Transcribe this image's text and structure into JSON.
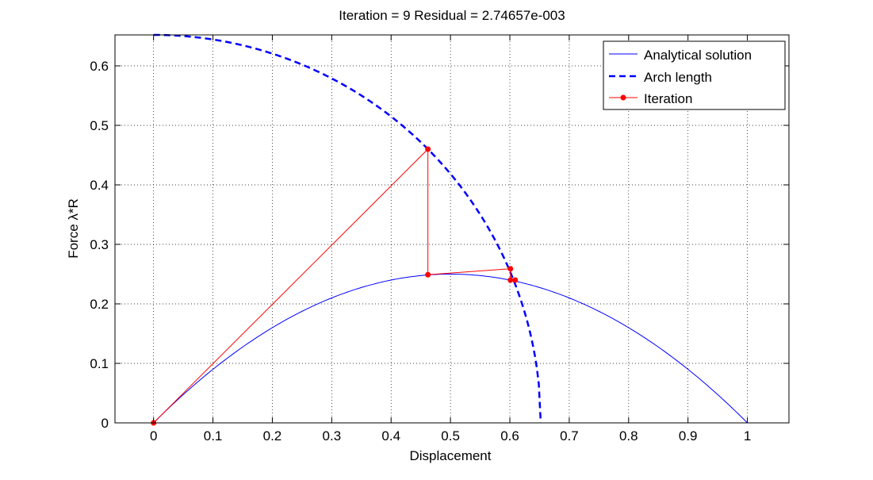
{
  "chart_data": {
    "type": "line",
    "title": "Iteration = 9 Residual = 2.74657e-003",
    "xlabel": "Displacement",
    "ylabel": "Force λ*R",
    "xlim": [
      -0.065,
      1.07
    ],
    "ylim": [
      0,
      0.652
    ],
    "xticks": [
      0,
      0.1,
      0.2,
      0.3,
      0.4,
      0.5,
      0.6,
      0.7,
      0.8,
      0.9,
      1
    ],
    "xtick_labels": [
      "0",
      "0.1",
      "0.2",
      "0.3",
      "0.4",
      "0.5",
      "0.6",
      "0.7",
      "0.8",
      "0.9",
      "1"
    ],
    "yticks": [
      0,
      0.1,
      0.2,
      0.3,
      0.4,
      0.5,
      0.6
    ],
    "ytick_labels": [
      "0",
      "0.1",
      "0.2",
      "0.3",
      "0.4",
      "0.5",
      "0.6"
    ],
    "grid": true,
    "grid_style": "dotted",
    "legend_position": "top-right",
    "legend": [
      "Analytical solution",
      "Arch length",
      "Iteration"
    ],
    "series": [
      {
        "name": "Analytical solution",
        "style": "solid",
        "color": "#0000ff",
        "function": "y = x*(1-x)",
        "x": [
          0,
          0.05,
          0.1,
          0.15,
          0.2,
          0.25,
          0.3,
          0.35,
          0.4,
          0.45,
          0.5,
          0.55,
          0.6,
          0.65,
          0.7,
          0.75,
          0.8,
          0.85,
          0.9,
          0.95,
          1
        ],
        "y": [
          0,
          0.0475,
          0.09,
          0.1275,
          0.16,
          0.1875,
          0.21,
          0.2275,
          0.24,
          0.2475,
          0.25,
          0.2475,
          0.24,
          0.2275,
          0.21,
          0.1875,
          0.16,
          0.1275,
          0.09,
          0.0475,
          0
        ]
      },
      {
        "name": "Arch length",
        "style": "dashed",
        "color": "#0000ff",
        "function": "x^2 + y^2 = 0.652^2",
        "x": [
          0,
          0.1,
          0.2,
          0.3,
          0.4,
          0.462,
          0.5,
          0.55,
          0.6,
          0.62,
          0.64,
          0.652
        ],
        "y": [
          0.652,
          0.6443,
          0.6206,
          0.5789,
          0.5148,
          0.4601,
          0.4184,
          0.3501,
          0.2551,
          0.2017,
          0.1243,
          0
        ]
      },
      {
        "name": "Iteration",
        "style": "solid-markers",
        "color": "#ff0000",
        "x": [
          0,
          0.462,
          0.462,
          0.601,
          0.601,
          0.609
        ],
        "y": [
          0,
          0.46,
          0.249,
          0.259,
          0.24,
          0.24
        ]
      }
    ]
  }
}
